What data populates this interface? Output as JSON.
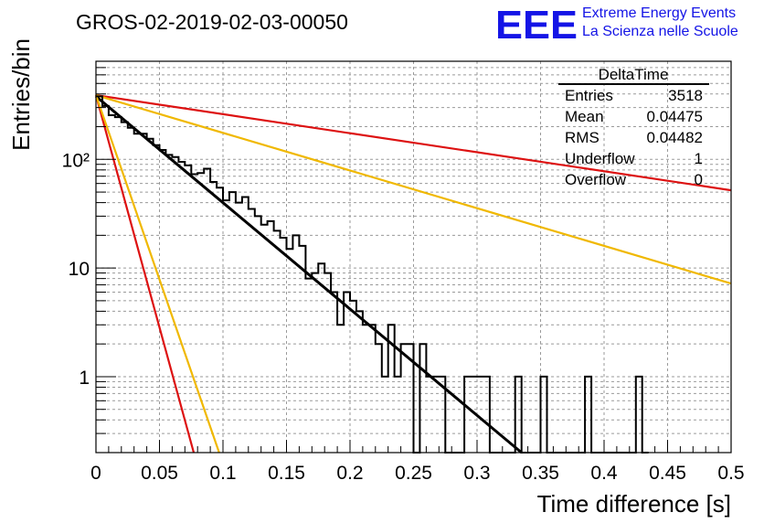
{
  "title": "GROS-02-2019-02-03-00050",
  "logo": {
    "mark": "EEE",
    "line1": "Extreme Energy Events",
    "line2": "La Scienza nelle Scuole",
    "color": "#1414e6"
  },
  "stats": {
    "name": "DeltaTime",
    "rows": [
      {
        "label": "Entries",
        "value": "3518"
      },
      {
        "label": "Mean",
        "value": "0.04475"
      },
      {
        "label": "RMS",
        "value": "0.04482"
      },
      {
        "label": "Underflow",
        "value": "1"
      },
      {
        "label": "Overflow",
        "value": "0"
      }
    ]
  },
  "chart_data": {
    "type": "histogram",
    "xlabel": "Time difference [s]",
    "ylabel": "Entries/bin",
    "xlim": [
      0,
      0.5
    ],
    "ylim": [
      0.2,
      800
    ],
    "ylog": true,
    "grid": true,
    "x_ticks": [
      "0",
      "0.05",
      "0.1",
      "0.15",
      "0.2",
      "0.25",
      "0.3",
      "0.35",
      "0.4",
      "0.45",
      "0.5"
    ],
    "y_ticks": [
      {
        "value": 1,
        "label": "1"
      },
      {
        "value": 10,
        "label": "10"
      },
      {
        "value": 100,
        "label": "10²"
      }
    ],
    "bin_width": 0.005,
    "histogram": [
      {
        "x": 0.0,
        "y": 380
      },
      {
        "x": 0.005,
        "y": 310
      },
      {
        "x": 0.01,
        "y": 255
      },
      {
        "x": 0.015,
        "y": 245
      },
      {
        "x": 0.02,
        "y": 220
      },
      {
        "x": 0.025,
        "y": 195
      },
      {
        "x": 0.03,
        "y": 172
      },
      {
        "x": 0.035,
        "y": 172
      },
      {
        "x": 0.04,
        "y": 155
      },
      {
        "x": 0.045,
        "y": 135
      },
      {
        "x": 0.05,
        "y": 122
      },
      {
        "x": 0.055,
        "y": 110
      },
      {
        "x": 0.06,
        "y": 105
      },
      {
        "x": 0.065,
        "y": 95
      },
      {
        "x": 0.07,
        "y": 88
      },
      {
        "x": 0.075,
        "y": 73
      },
      {
        "x": 0.08,
        "y": 75
      },
      {
        "x": 0.085,
        "y": 82
      },
      {
        "x": 0.09,
        "y": 62
      },
      {
        "x": 0.095,
        "y": 55
      },
      {
        "x": 0.1,
        "y": 42
      },
      {
        "x": 0.105,
        "y": 50
      },
      {
        "x": 0.11,
        "y": 40
      },
      {
        "x": 0.115,
        "y": 45
      },
      {
        "x": 0.12,
        "y": 35
      },
      {
        "x": 0.125,
        "y": 30
      },
      {
        "x": 0.13,
        "y": 25
      },
      {
        "x": 0.135,
        "y": 27
      },
      {
        "x": 0.14,
        "y": 22
      },
      {
        "x": 0.145,
        "y": 19
      },
      {
        "x": 0.15,
        "y": 15
      },
      {
        "x": 0.155,
        "y": 20
      },
      {
        "x": 0.16,
        "y": 16
      },
      {
        "x": 0.165,
        "y": 8
      },
      {
        "x": 0.17,
        "y": 9
      },
      {
        "x": 0.175,
        "y": 11
      },
      {
        "x": 0.18,
        "y": 9
      },
      {
        "x": 0.185,
        "y": 6
      },
      {
        "x": 0.19,
        "y": 3
      },
      {
        "x": 0.195,
        "y": 6
      },
      {
        "x": 0.2,
        "y": 5
      },
      {
        "x": 0.205,
        "y": 4
      },
      {
        "x": 0.21,
        "y": 3
      },
      {
        "x": 0.215,
        "y": 3
      },
      {
        "x": 0.22,
        "y": 2
      },
      {
        "x": 0.225,
        "y": 1
      },
      {
        "x": 0.23,
        "y": 3
      },
      {
        "x": 0.235,
        "y": 1
      },
      {
        "x": 0.24,
        "y": 2
      },
      {
        "x": 0.245,
        "y": 2
      },
      {
        "x": 0.25,
        "y": 0
      },
      {
        "x": 0.255,
        "y": 2
      },
      {
        "x": 0.26,
        "y": 1
      },
      {
        "x": 0.265,
        "y": 1
      },
      {
        "x": 0.27,
        "y": 1
      },
      {
        "x": 0.275,
        "y": 0
      },
      {
        "x": 0.28,
        "y": 0
      },
      {
        "x": 0.285,
        "y": 0
      },
      {
        "x": 0.29,
        "y": 1
      },
      {
        "x": 0.295,
        "y": 1
      },
      {
        "x": 0.3,
        "y": 1
      },
      {
        "x": 0.305,
        "y": 1
      },
      {
        "x": 0.31,
        "y": 0
      },
      {
        "x": 0.315,
        "y": 0
      },
      {
        "x": 0.32,
        "y": 0
      },
      {
        "x": 0.325,
        "y": 0
      },
      {
        "x": 0.33,
        "y": 1
      },
      {
        "x": 0.335,
        "y": 0
      },
      {
        "x": 0.34,
        "y": 0
      },
      {
        "x": 0.345,
        "y": 0
      },
      {
        "x": 0.35,
        "y": 1
      },
      {
        "x": 0.355,
        "y": 0
      },
      {
        "x": 0.36,
        "y": 0
      },
      {
        "x": 0.365,
        "y": 0
      },
      {
        "x": 0.37,
        "y": 0
      },
      {
        "x": 0.375,
        "y": 0
      },
      {
        "x": 0.38,
        "y": 0
      },
      {
        "x": 0.385,
        "y": 1
      },
      {
        "x": 0.39,
        "y": 0
      },
      {
        "x": 0.395,
        "y": 0
      },
      {
        "x": 0.4,
        "y": 0
      },
      {
        "x": 0.405,
        "y": 0
      },
      {
        "x": 0.41,
        "y": 0
      },
      {
        "x": 0.415,
        "y": 0
      },
      {
        "x": 0.42,
        "y": 0
      },
      {
        "x": 0.425,
        "y": 1
      },
      {
        "x": 0.43,
        "y": 0
      }
    ],
    "curves": [
      {
        "color": "#000000",
        "points": [
          [
            0.0,
            380
          ],
          [
            0.335,
            0.2
          ]
        ]
      },
      {
        "color": "#dd1111",
        "points": [
          [
            0.0,
            390
          ],
          [
            0.5,
            52
          ]
        ]
      },
      {
        "color": "#f0b800",
        "points": [
          [
            0.0,
            390
          ],
          [
            0.5,
            7.2
          ]
        ]
      },
      {
        "color": "#dd1111",
        "points": [
          [
            0.0,
            390
          ],
          [
            0.077,
            0.2
          ]
        ]
      },
      {
        "color": "#f0b800",
        "points": [
          [
            0.0,
            390
          ],
          [
            0.097,
            0.2
          ]
        ]
      }
    ]
  }
}
